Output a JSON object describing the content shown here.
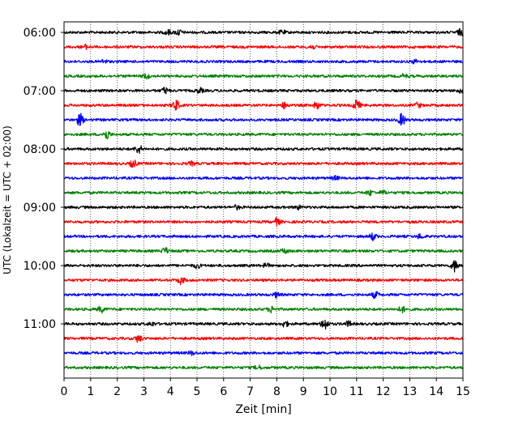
{
  "chart_data": {
    "type": "line",
    "title": "",
    "xlabel": "Zeit  [min]",
    "ylabel": "UTC (Lokalzeit = UTC + 02:00)",
    "xlim": [
      0,
      15
    ],
    "x_ticks": [
      0,
      1,
      2,
      3,
      4,
      5,
      6,
      7,
      8,
      9,
      10,
      11,
      12,
      13,
      14,
      15
    ],
    "grid": "vertical-dotted",
    "y_ticks": [
      "06:00",
      "07:00",
      "08:00",
      "09:00",
      "10:00",
      "11:00"
    ],
    "traces_per_hour": 4,
    "trace_colors": [
      "#000000",
      "#ff0000",
      "#0000ff",
      "#008000"
    ],
    "traces": [
      {
        "start": "06:00",
        "events": [
          [
            3.9,
            0.4
          ],
          [
            4.3,
            0.5
          ],
          [
            8.2,
            0.3
          ],
          [
            14.9,
            0.5
          ]
        ]
      },
      {
        "start": "06:15",
        "events": [
          [
            0.8,
            0.3
          ],
          [
            9.3,
            0.4
          ]
        ]
      },
      {
        "start": "06:30",
        "events": [
          [
            1.5,
            0.3
          ],
          [
            13.2,
            0.3
          ]
        ]
      },
      {
        "start": "06:45",
        "events": [
          [
            3.1,
            0.4
          ],
          [
            12.8,
            0.3
          ]
        ]
      },
      {
        "start": "07:00",
        "events": [
          [
            3.8,
            0.5
          ],
          [
            5.1,
            0.4
          ],
          [
            14.9,
            0.3
          ]
        ]
      },
      {
        "start": "07:15",
        "events": [
          [
            4.2,
            0.9
          ],
          [
            8.3,
            0.5
          ],
          [
            9.5,
            0.6
          ],
          [
            11.0,
            0.9
          ],
          [
            13.3,
            0.4
          ]
        ]
      },
      {
        "start": "07:30",
        "events": [
          [
            0.6,
            1.0
          ],
          [
            12.7,
            1.0
          ]
        ]
      },
      {
        "start": "07:45",
        "events": [
          [
            1.6,
            0.8
          ]
        ]
      },
      {
        "start": "08:00",
        "events": [
          [
            2.8,
            0.7
          ]
        ]
      },
      {
        "start": "08:15",
        "events": [
          [
            2.6,
            0.6
          ],
          [
            4.8,
            0.3
          ]
        ]
      },
      {
        "start": "08:30",
        "events": [
          [
            10.2,
            0.3
          ]
        ]
      },
      {
        "start": "08:45",
        "events": [
          [
            11.5,
            0.4
          ],
          [
            12.0,
            0.3
          ]
        ]
      },
      {
        "start": "09:00",
        "events": [
          [
            6.5,
            0.3
          ],
          [
            8.8,
            0.3
          ]
        ]
      },
      {
        "start": "09:15",
        "events": [
          [
            8.0,
            0.6
          ]
        ]
      },
      {
        "start": "09:30",
        "events": [
          [
            11.6,
            0.6
          ],
          [
            13.4,
            0.4
          ]
        ]
      },
      {
        "start": "09:45",
        "events": [
          [
            3.8,
            0.5
          ],
          [
            8.3,
            0.4
          ]
        ]
      },
      {
        "start": "10:00",
        "events": [
          [
            5.0,
            0.4
          ],
          [
            7.6,
            0.3
          ],
          [
            14.7,
            1.0
          ]
        ]
      },
      {
        "start": "10:15",
        "events": [
          [
            4.4,
            0.6
          ]
        ]
      },
      {
        "start": "10:30",
        "events": [
          [
            8.0,
            0.4
          ],
          [
            11.7,
            0.5
          ]
        ]
      },
      {
        "start": "10:45",
        "events": [
          [
            1.4,
            0.5
          ],
          [
            7.8,
            0.5
          ],
          [
            12.7,
            0.5
          ]
        ]
      },
      {
        "start": "11:00",
        "events": [
          [
            3.3,
            0.3
          ],
          [
            8.3,
            0.5
          ],
          [
            9.8,
            1.0
          ],
          [
            10.7,
            0.4
          ]
        ]
      },
      {
        "start": "11:15",
        "events": [
          [
            2.8,
            0.6
          ]
        ]
      },
      {
        "start": "11:30",
        "events": [
          [
            4.8,
            0.3
          ]
        ]
      },
      {
        "start": "11:45",
        "events": [
          [
            7.3,
            0.3
          ]
        ]
      }
    ]
  }
}
